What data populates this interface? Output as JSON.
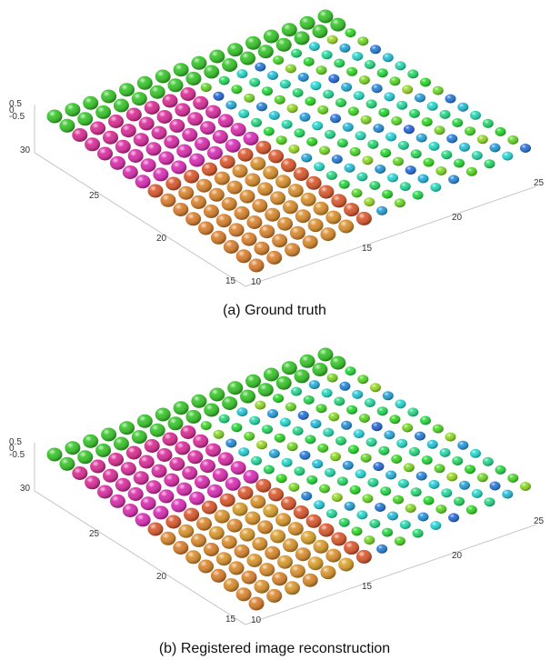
{
  "figures": [
    {
      "caption": "(a) Ground truth",
      "z_ticks": [
        "0.5",
        "0",
        "-0.5"
      ],
      "y_ticks": [
        "30",
        "25",
        "20",
        "15"
      ],
      "x_ticks": [
        "10",
        "15",
        "20",
        "25"
      ]
    },
    {
      "caption": "(b) Registered image reconstruction",
      "z_ticks": [
        "0.5",
        "0",
        "-0.5"
      ],
      "y_ticks": [
        "30",
        "25",
        "20",
        "15"
      ],
      "x_ticks": [
        "10",
        "15",
        "20",
        "25"
      ]
    }
  ]
}
